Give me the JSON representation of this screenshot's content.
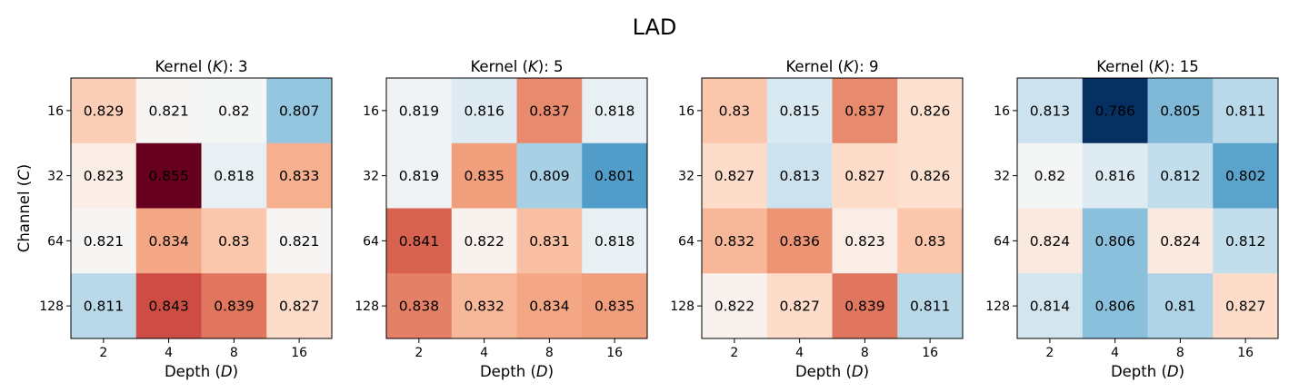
{
  "title": "LAD",
  "chart_data": [
    {
      "type": "heatmap",
      "title": "Kernel (K): 3",
      "title_prefix": "Kernel (",
      "title_var": "K",
      "title_suffix": "): 3",
      "xlabel": "Depth (D)",
      "xlabel_text": "Depth (",
      "xlabel_var": "D",
      "xlabel_close": ")",
      "ylabel": "Channel (C)",
      "ylabel_text": "Channel (",
      "ylabel_var": "C",
      "ylabel_close": ")",
      "x": [
        "2",
        "4",
        "8",
        "16"
      ],
      "y": [
        "16",
        "32",
        "64",
        "128"
      ],
      "values": [
        [
          0.829,
          0.821,
          0.82,
          0.807
        ],
        [
          0.823,
          0.855,
          0.818,
          0.833
        ],
        [
          0.821,
          0.834,
          0.83,
          0.821
        ],
        [
          0.811,
          0.843,
          0.839,
          0.827
        ]
      ],
      "colormap": "RdBu_r"
    },
    {
      "type": "heatmap",
      "title": "Kernel (K): 5",
      "title_prefix": "Kernel (",
      "title_var": "K",
      "title_suffix": "): 5",
      "xlabel": "Depth (D)",
      "xlabel_text": "Depth (",
      "xlabel_var": "D",
      "xlabel_close": ")",
      "x": [
        "2",
        "4",
        "8",
        "16"
      ],
      "y": [
        "16",
        "32",
        "64",
        "128"
      ],
      "values": [
        [
          0.819,
          0.816,
          0.837,
          0.818
        ],
        [
          0.819,
          0.835,
          0.809,
          0.801
        ],
        [
          0.841,
          0.822,
          0.831,
          0.818
        ],
        [
          0.838,
          0.832,
          0.834,
          0.835
        ]
      ],
      "colormap": "RdBu_r"
    },
    {
      "type": "heatmap",
      "title": "Kernel (K): 9",
      "title_prefix": "Kernel (",
      "title_var": "K",
      "title_suffix": "): 9",
      "xlabel": "Depth (D)",
      "xlabel_text": "Depth (",
      "xlabel_var": "D",
      "xlabel_close": ")",
      "x": [
        "2",
        "4",
        "8",
        "16"
      ],
      "y": [
        "16",
        "32",
        "64",
        "128"
      ],
      "values": [
        [
          0.83,
          0.815,
          0.837,
          0.826
        ],
        [
          0.827,
          0.813,
          0.827,
          0.826
        ],
        [
          0.832,
          0.836,
          0.823,
          0.83
        ],
        [
          0.822,
          0.827,
          0.839,
          0.811
        ]
      ],
      "colormap": "RdBu_r"
    },
    {
      "type": "heatmap",
      "title": "Kernel (K): 15",
      "title_prefix": "Kernel (",
      "title_var": "K",
      "title_suffix": "): 15",
      "xlabel": "Depth (D)",
      "xlabel_text": "Depth (",
      "xlabel_var": "D",
      "xlabel_close": ")",
      "x": [
        "2",
        "4",
        "8",
        "16"
      ],
      "y": [
        "16",
        "32",
        "64",
        "128"
      ],
      "values": [
        [
          0.813,
          0.786,
          0.805,
          0.811
        ],
        [
          0.82,
          0.816,
          0.812,
          0.802
        ],
        [
          0.824,
          0.806,
          0.824,
          0.812
        ],
        [
          0.814,
          0.806,
          0.81,
          0.827
        ]
      ],
      "colormap": "RdBu_r"
    }
  ]
}
